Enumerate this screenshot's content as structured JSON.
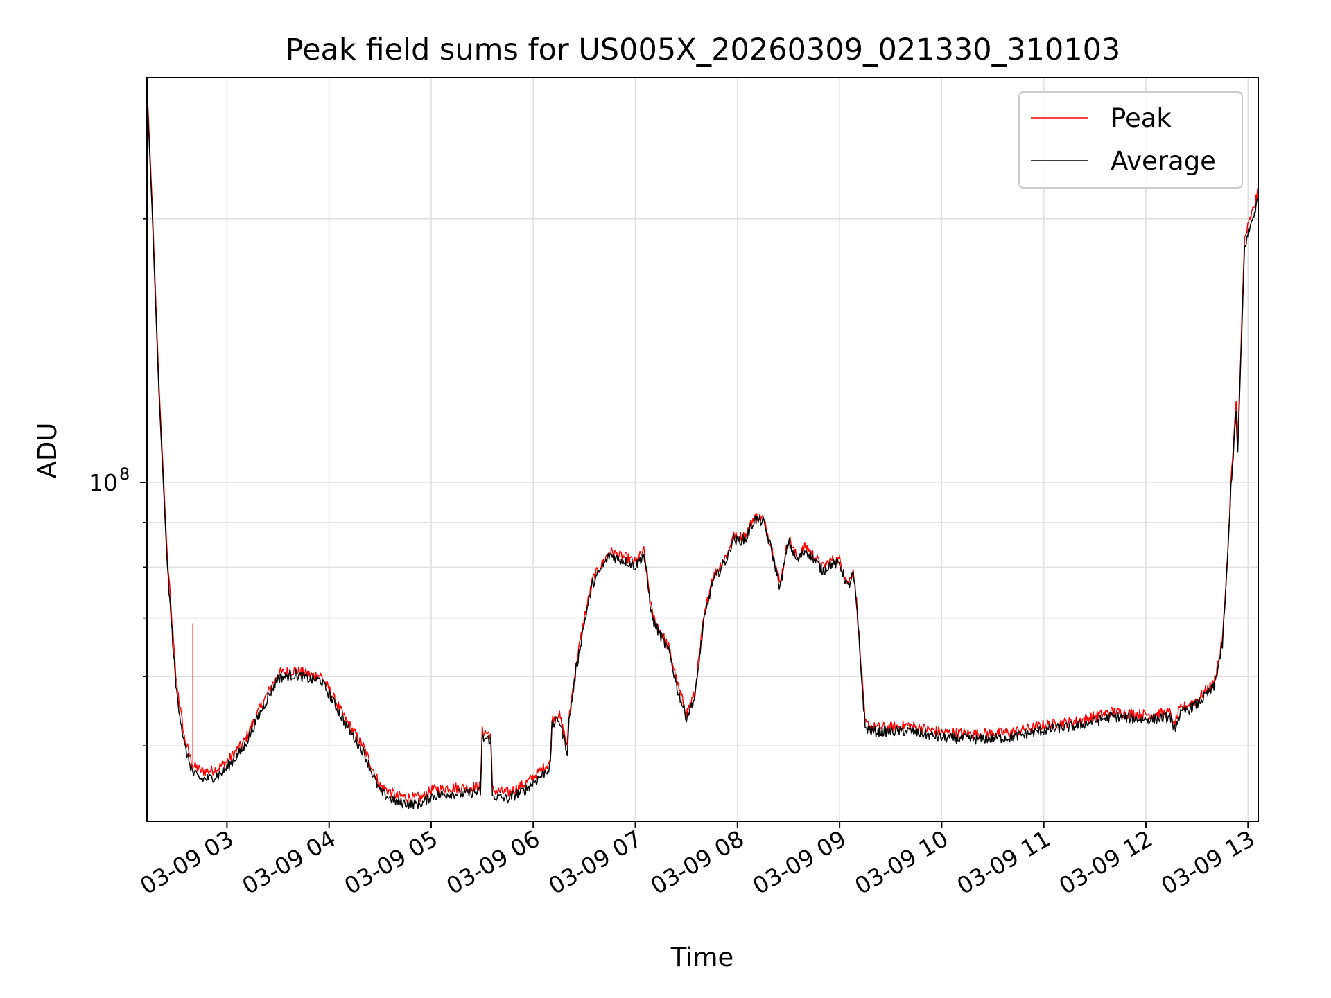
{
  "chart_data": {
    "type": "line",
    "title": "Peak field sums for US005X_20260309_021330_310103",
    "xlabel": "Time",
    "ylabel": "ADU",
    "y_scale": "log",
    "grid": true,
    "legend_position": "top-right",
    "xlim": [
      "03-09 02:13",
      "03-09 13:06"
    ],
    "ylim": [
      41000000.0,
      290000000.0
    ],
    "x_ticks": [
      "03-09 03",
      "03-09 04",
      "03-09 05",
      "03-09 06",
      "03-09 07",
      "03-09 08",
      "03-09 09",
      "03-09 10",
      "03-09 11",
      "03-09 12",
      "03-09 13"
    ],
    "y_major_tick": {
      "value": 100000000.0,
      "label_base": "10",
      "label_exp": "8"
    },
    "y_minor_ticks": [
      50000000.0,
      60000000.0,
      70000000.0,
      80000000.0,
      90000000.0,
      200000000.0
    ],
    "series": [
      {
        "name": "Peak",
        "color": "#ff0000",
        "x": [
          "02:13",
          "02:16",
          "02:20",
          "02:25",
          "02:30",
          "02:35",
          "02:40",
          "02:45",
          "02:50",
          "02:55",
          "03:00",
          "03:10",
          "03:20",
          "03:30",
          "03:40",
          "03:50",
          "03:55",
          "04:00",
          "04:10",
          "04:20",
          "04:30",
          "04:40",
          "04:50",
          "04:55",
          "05:00",
          "05:10",
          "05:20",
          "05:29",
          "05:30",
          "05:35",
          "05:36",
          "05:45",
          "05:55",
          "06:05",
          "06:10",
          "06:11",
          "06:15",
          "06:20",
          "06:21",
          "06:25",
          "06:30",
          "06:35",
          "06:45",
          "06:50",
          "06:55",
          "07:00",
          "07:05",
          "07:10",
          "07:20",
          "07:25",
          "07:30",
          "07:35",
          "07:40",
          "07:45",
          "07:55",
          "07:57",
          "08:00",
          "08:05",
          "08:10",
          "08:15",
          "08:20",
          "08:25",
          "08:30",
          "08:35",
          "08:40",
          "08:45",
          "08:50",
          "08:55",
          "09:00",
          "09:05",
          "09:08",
          "09:10",
          "09:15",
          "09:20",
          "09:30",
          "09:40",
          "10:00",
          "10:20",
          "10:40",
          "11:00",
          "11:20",
          "11:40",
          "12:00",
          "12:10",
          "12:15",
          "12:16",
          "12:20",
          "12:30",
          "12:40",
          "12:45",
          "12:48",
          "12:50",
          "12:53",
          "12:54",
          "12:58",
          "13:03",
          "13:06"
        ],
        "values": [
          285000000,
          210000000,
          130000000,
          82000000,
          60000000,
          51000000,
          47500000,
          46800000,
          46800000,
          47200000,
          48000000,
          50500000,
          55500000,
          60500000,
          61000000,
          60200000,
          60200000,
          58000000,
          53500000,
          50000000,
          45000000,
          43800000,
          43600000,
          43700000,
          44500000,
          44800000,
          44800000,
          45000000,
          52000000,
          51500000,
          44500000,
          44200000,
          45200000,
          47000000,
          48000000,
          53500000,
          54500000,
          50000000,
          54000000,
          61500000,
          70000000,
          77500000,
          83500000,
          82500000,
          82000000,
          81000000,
          83500000,
          70500000,
          64500000,
          58500000,
          54500000,
          57500000,
          69500000,
          77500000,
          83500000,
          87000000,
          86500000,
          87000000,
          91500000,
          91000000,
          84500000,
          76500000,
          86500000,
          82000000,
          84500000,
          82500000,
          80000000,
          81500000,
          81500000,
          76500000,
          79500000,
          73000000,
          53000000,
          52500000,
          52500000,
          52800000,
          51800000,
          51600000,
          51800000,
          52800000,
          53400000,
          54700000,
          54300000,
          54500000,
          54600000,
          52500000,
          55000000,
          56500000,
          59000000,
          66000000,
          82500000,
          100000000,
          123000000,
          112000000,
          190000000,
          205000000,
          215000000
        ]
      },
      {
        "name": "Average",
        "color": "#000000",
        "x": [
          "02:13",
          "02:16",
          "02:20",
          "02:25",
          "02:30",
          "02:35",
          "02:40",
          "02:45",
          "02:50",
          "02:55",
          "03:00",
          "03:10",
          "03:20",
          "03:30",
          "03:40",
          "03:50",
          "03:55",
          "04:00",
          "04:10",
          "04:20",
          "04:30",
          "04:40",
          "04:50",
          "04:55",
          "05:00",
          "05:10",
          "05:20",
          "05:29",
          "05:30",
          "05:35",
          "05:36",
          "05:45",
          "05:55",
          "06:05",
          "06:10",
          "06:11",
          "06:15",
          "06:20",
          "06:21",
          "06:25",
          "06:30",
          "06:35",
          "06:45",
          "06:50",
          "06:55",
          "07:00",
          "07:05",
          "07:10",
          "07:20",
          "07:25",
          "07:30",
          "07:35",
          "07:40",
          "07:45",
          "07:55",
          "07:57",
          "08:00",
          "08:05",
          "08:10",
          "08:15",
          "08:20",
          "08:25",
          "08:30",
          "08:35",
          "08:40",
          "08:45",
          "08:50",
          "08:55",
          "09:00",
          "09:05",
          "09:08",
          "09:10",
          "09:15",
          "09:20",
          "09:30",
          "09:40",
          "10:00",
          "10:20",
          "10:40",
          "11:00",
          "11:20",
          "11:40",
          "12:00",
          "12:10",
          "12:15",
          "12:16",
          "12:20",
          "12:30",
          "12:40",
          "12:45",
          "12:48",
          "12:50",
          "12:53",
          "12:54",
          "12:58",
          "13:03",
          "13:06"
        ],
        "values": [
          280000000,
          205000000,
          127000000,
          80000000,
          58500000,
          50000000,
          46500000,
          45800000,
          45900000,
          46300000,
          47200000,
          49800000,
          54800000,
          59800000,
          60300000,
          59500000,
          59500000,
          57300000,
          52800000,
          49300000,
          44300000,
          43100000,
          42900000,
          43000000,
          43800000,
          44100000,
          44100000,
          44300000,
          51000000,
          50800000,
          43800000,
          43500000,
          44500000,
          46300000,
          47300000,
          52700000,
          53700000,
          49300000,
          53200000,
          60800000,
          69200000,
          76700000,
          82700000,
          81700000,
          81200000,
          80200000,
          82700000,
          69700000,
          63800000,
          57800000,
          53900000,
          56800000,
          68800000,
          76700000,
          82700000,
          86200000,
          85700000,
          86200000,
          90700000,
          90200000,
          83700000,
          75800000,
          85700000,
          81200000,
          83700000,
          81700000,
          79200000,
          80700000,
          80700000,
          75800000,
          78700000,
          72300000,
          52400000,
          51900000,
          51900000,
          52000000,
          51100000,
          50900000,
          51100000,
          52100000,
          52700000,
          54000000,
          53600000,
          53800000,
          53900000,
          51800000,
          54300000,
          55800000,
          58300000,
          65300000,
          81700000,
          99000000,
          120000000,
          108000000,
          186000000,
          201000000,
          211000000
        ]
      }
    ]
  }
}
